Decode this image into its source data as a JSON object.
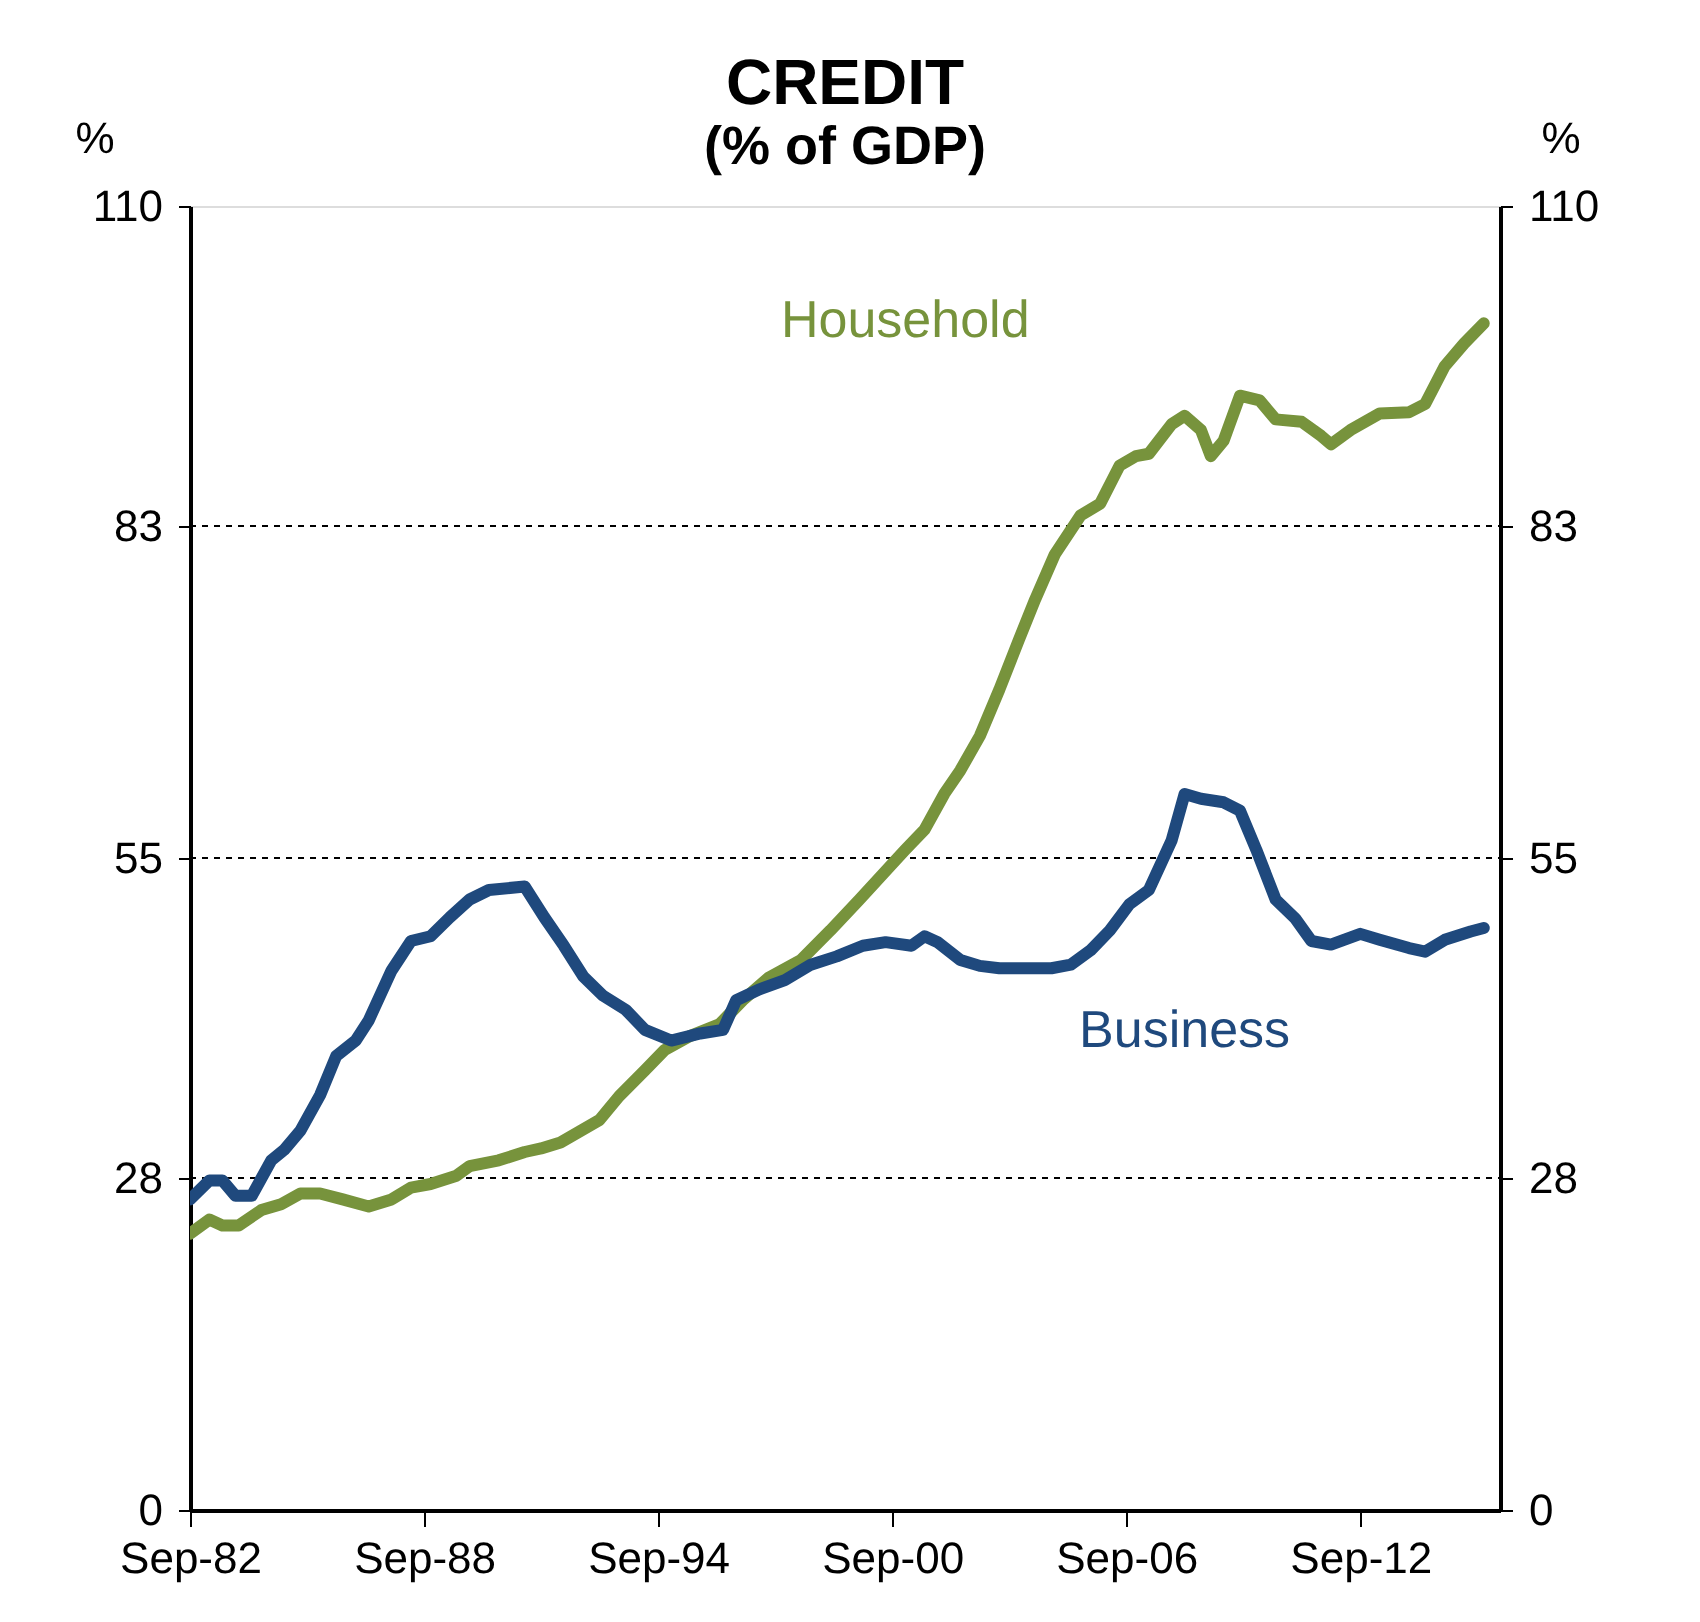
{
  "chart_data": {
    "type": "line",
    "title": "CREDIT",
    "subtitle": "(% of GDP)",
    "ylabel": "%",
    "y2label": "%",
    "xlim": [
      "1982-09",
      "2016-04"
    ],
    "xticks": [
      {
        "value": "1982-09",
        "label": "Sep-82"
      },
      {
        "value": "1988-09",
        "label": "Sep-88"
      },
      {
        "value": "1994-09",
        "label": "Sep-94"
      },
      {
        "value": "2000-09",
        "label": "Sep-00"
      },
      {
        "value": "2006-09",
        "label": "Sep-06"
      },
      {
        "value": "2012-09",
        "label": "Sep-12"
      }
    ],
    "ylim": [
      0,
      110
    ],
    "yticks": [
      0,
      28,
      55,
      83,
      110
    ],
    "y2lim": [
      0,
      110
    ],
    "y2ticks": [
      0,
      28,
      55,
      83,
      110
    ],
    "grid": "y",
    "legend": false,
    "marker": "none",
    "line_style": "solid",
    "series": [
      {
        "name": "Household",
        "color": "#77933c",
        "x": [
          "1982-09",
          "1983-03",
          "1983-07",
          "1983-12",
          "1984-07",
          "1985-01",
          "1985-07",
          "1986-01",
          "1986-08",
          "1987-04",
          "1987-11",
          "1988-05",
          "1988-11",
          "1989-07",
          "1989-11",
          "1990-08",
          "1991-04",
          "1991-09",
          "1992-03",
          "1993-03",
          "1993-09",
          "1994-05",
          "1994-11",
          "1995-07",
          "1996-04",
          "1996-11",
          "1997-07",
          "1998-05",
          "1999-02",
          "1999-11",
          "2000-08",
          "2001-01",
          "2001-07",
          "2002-01",
          "2002-06",
          "2002-12",
          "2003-06",
          "2003-12",
          "2004-05",
          "2004-11",
          "2005-07",
          "2006-01",
          "2006-07",
          "2006-12",
          "2007-04",
          "2007-11",
          "2008-03",
          "2008-08",
          "2008-11",
          "2009-03",
          "2009-08",
          "2010-02",
          "2010-07",
          "2011-03",
          "2011-09",
          "2011-12",
          "2012-06",
          "2013-03",
          "2013-12",
          "2014-05",
          "2014-11",
          "2015-05",
          "2015-11"
        ],
        "values": [
          23.3,
          24.5,
          24,
          24,
          25.3,
          25.8,
          26.7,
          26.7,
          26.2,
          25.6,
          26.2,
          27.2,
          27.5,
          28.2,
          29,
          29.5,
          30.2,
          30.5,
          31,
          32.9,
          34.9,
          37.1,
          38.8,
          40,
          41,
          43,
          44.9,
          46.4,
          48.9,
          51.5,
          54.2,
          55.7,
          57.4,
          60.4,
          62.4,
          65.3,
          69.2,
          73.4,
          76.8,
          80.6,
          83.9,
          84.9,
          88.1,
          88.9,
          89.1,
          91.6,
          92.3,
          91.1,
          88.9,
          90.2,
          94,
          93.6,
          92,
          91.8,
          90.6,
          89.9,
          91.1,
          92.5,
          92.6,
          93.3,
          96.5,
          98.4,
          100.1
        ]
      },
      {
        "name": "Business",
        "color": "#1f497d",
        "x": [
          "1982-09",
          "1983-03",
          "1983-07",
          "1983-11",
          "1984-04",
          "1984-10",
          "1985-02",
          "1985-07",
          "1986-01",
          "1986-06",
          "1986-12",
          "1987-04",
          "1987-11",
          "1988-05",
          "1988-11",
          "1989-05",
          "1989-11",
          "1990-05",
          "1991-04",
          "1991-10",
          "1992-04",
          "1992-10",
          "1993-04",
          "1993-11",
          "1994-05",
          "1995-01",
          "1995-10",
          "1996-05",
          "1996-09",
          "1997-04",
          "1997-12",
          "1998-08",
          "1999-04",
          "1999-12",
          "2000-07",
          "2001-03",
          "2001-07",
          "2001-11",
          "2002-06",
          "2002-12",
          "2003-06",
          "2004-04",
          "2004-10",
          "2005-04",
          "2005-10",
          "2006-04",
          "2006-10",
          "2007-04",
          "2007-11",
          "2008-03",
          "2008-08",
          "2009-03",
          "2009-08",
          "2010-01",
          "2010-07",
          "2011-01",
          "2011-06",
          "2011-12",
          "2012-09",
          "2013-03",
          "2013-12",
          "2014-05",
          "2014-11",
          "2015-07",
          "2015-11"
        ],
        "values": [
          26.2,
          27.8,
          27.8,
          26.5,
          26.5,
          29.5,
          30.4,
          32,
          35,
          38.3,
          39.6,
          41.3,
          45.5,
          48,
          48.4,
          50,
          51.5,
          52.3,
          52.6,
          50,
          47.6,
          45,
          43.4,
          42.2,
          40.5,
          39.6,
          40.2,
          40.5,
          43,
          43.9,
          44.7,
          46,
          46.7,
          47.6,
          47.9,
          47.6,
          48.4,
          47.9,
          46.4,
          45.9,
          45.7,
          45.7,
          45.7,
          46,
          47.2,
          48.9,
          51.1,
          52.3,
          56.5,
          60.4,
          60,
          59.7,
          59,
          55.7,
          51.5,
          49.9,
          48,
          47.7,
          48.6,
          48.1,
          47.4,
          47.1,
          48.1,
          48.8,
          49.1
        ]
      }
    ]
  }
}
